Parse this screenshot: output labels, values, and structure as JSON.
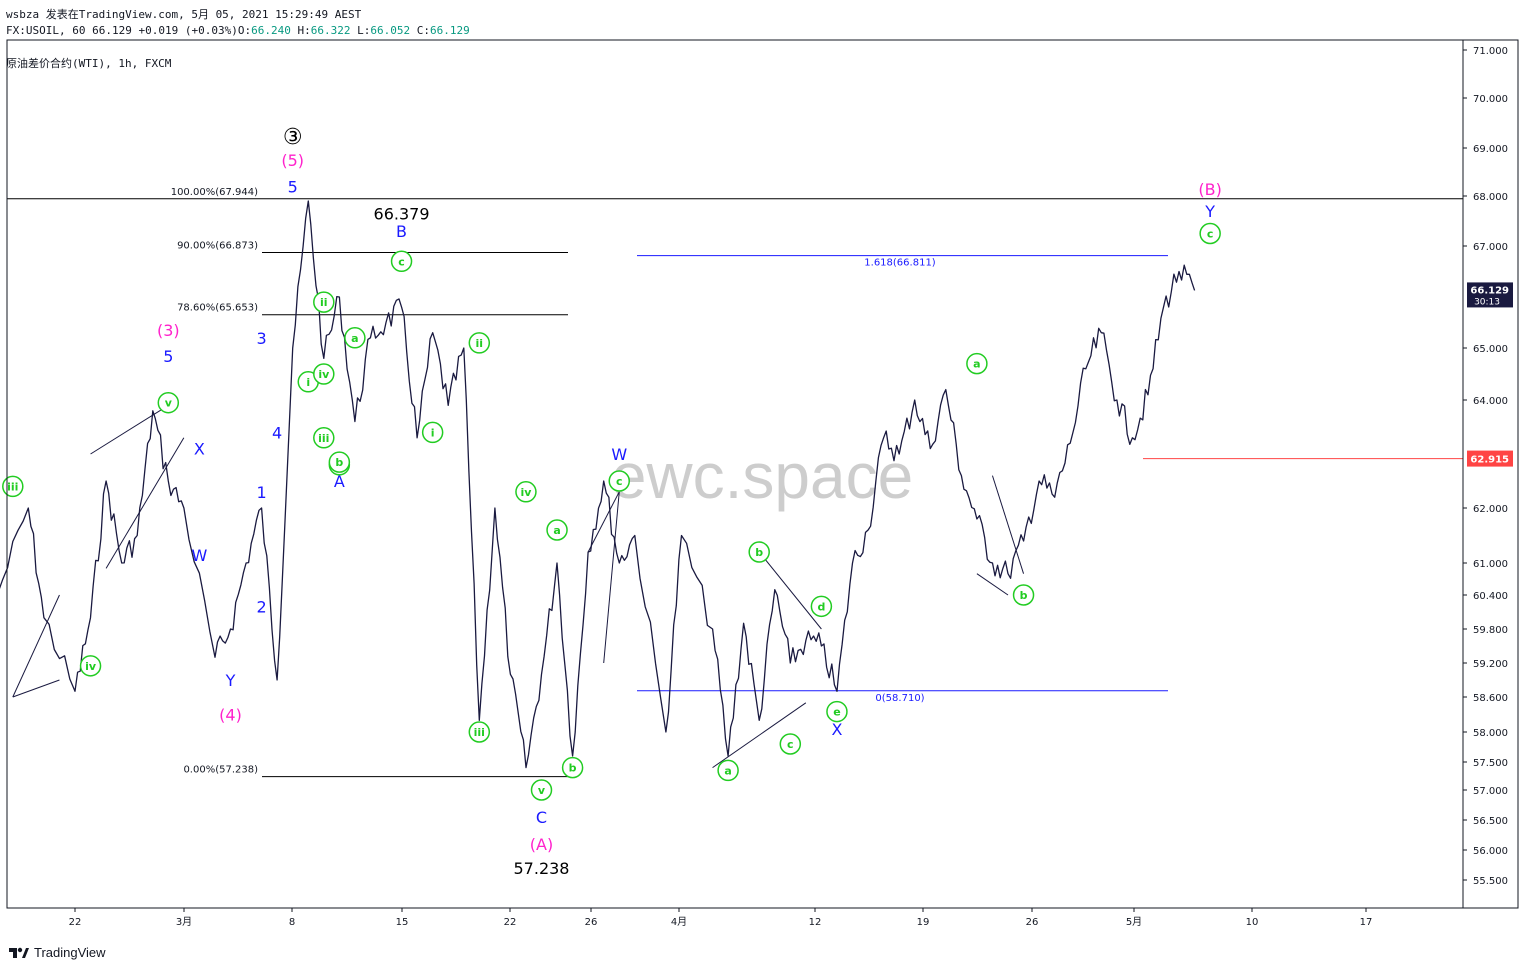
{
  "header": {
    "line1": "wsbza 发表在TradingView.com, 5月 05, 2021 15:29:49 AEST",
    "symbol": "FX:USOIL, 60",
    "last": "66.129",
    "change": "+0.019 (+0.03%)",
    "o_label": "O:",
    "o": "66.240",
    "h_label": "H:",
    "h": "66.322",
    "l_label": "L:",
    "l": "66.052",
    "c_label": "C:",
    "c": "66.129"
  },
  "title": "原油差价合约(WTI), 1h, FXCM",
  "watermark": "ewc.space",
  "brand": "TradingView",
  "colors": {
    "line": "#1a1a40",
    "green": "#22cc22",
    "blue": "#1a1aff",
    "magenta": "#ff22cc",
    "red": "#ff4444",
    "black": "#000000"
  },
  "chart_data": {
    "type": "line",
    "symbol": "FX:USOIL",
    "timeframe": "1h",
    "y_ticks": [
      "71.000",
      "70.000",
      "69.000",
      "68.000",
      "67.000",
      "65.000",
      "64.000",
      "62.000",
      "61.000",
      "60.400",
      "59.800",
      "59.200",
      "58.600",
      "58.000",
      "57.500",
      "57.000",
      "56.500",
      "56.000",
      "55.500"
    ],
    "x_ticks": [
      "22",
      "3月",
      "8",
      "15",
      "22",
      "26",
      "4月",
      "12",
      "19",
      "26",
      "5月",
      "10",
      "17"
    ],
    "x": [
      "2021-02-17",
      "2021-02-19",
      "2021-02-20",
      "2021-02-22",
      "2021-02-23",
      "2021-02-24",
      "2021-02-25",
      "2021-02-26",
      "2021-02-27",
      "2021-02-28",
      "2021-03-01",
      "2021-03-03",
      "2021-03-04",
      "2021-03-05",
      "2021-03-06",
      "2021-03-07",
      "2021-03-08",
      "2021-03-09",
      "2021-03-10",
      "2021-03-11",
      "2021-03-12",
      "2021-03-13",
      "2021-03-14",
      "2021-03-15",
      "2021-03-16",
      "2021-03-17",
      "2021-03-18",
      "2021-03-19",
      "2021-03-20",
      "2021-03-21",
      "2021-03-22",
      "2021-03-23",
      "2021-03-24",
      "2021-03-25",
      "2021-03-26",
      "2021-03-27",
      "2021-03-28",
      "2021-03-29",
      "2021-03-30",
      "2021-04-01",
      "2021-04-02",
      "2021-04-04",
      "2021-04-05",
      "2021-04-06",
      "2021-04-07",
      "2021-04-08",
      "2021-04-09",
      "2021-04-10",
      "2021-04-11",
      "2021-04-12",
      "2021-04-13",
      "2021-04-14",
      "2021-04-15",
      "2021-04-16",
      "2021-04-17",
      "2021-04-18",
      "2021-04-19",
      "2021-04-20",
      "2021-04-21",
      "2021-04-22",
      "2021-04-23",
      "2021-04-24",
      "2021-04-25",
      "2021-04-26",
      "2021-04-27",
      "2021-04-28",
      "2021-04-29",
      "2021-04-30",
      "2021-05-01",
      "2021-05-02",
      "2021-05-03",
      "2021-05-04",
      "2021-05-05"
    ],
    "y": [
      60.4,
      62.0,
      60.0,
      58.7,
      60.0,
      62.5,
      61.0,
      61.5,
      63.8,
      62.5,
      62.0,
      59.3,
      59.8,
      61.0,
      62.0,
      58.9,
      65.0,
      67.9,
      64.8,
      66.0,
      63.6,
      65.2,
      65.5,
      65.8,
      63.3,
      65.3,
      63.9,
      65.0,
      58.2,
      62.0,
      59.0,
      57.4,
      59.0,
      61.0,
      57.6,
      61.2,
      62.5,
      61.0,
      61.5,
      58.0,
      61.5,
      59.8,
      57.6,
      59.9,
      58.2,
      60.5,
      59.2,
      59.6,
      59.5,
      58.7,
      61.0,
      61.6,
      63.3,
      63.0,
      64.0,
      63.1,
      64.2,
      62.6,
      61.8,
      61.0,
      60.8,
      61.4,
      62.5,
      62.2,
      63.2,
      64.6,
      65.3,
      64.0,
      63.3,
      64.1,
      65.8,
      66.5,
      66.129
    ],
    "current_price": "66.129",
    "countdown": "30:13",
    "marker_price": "62.915",
    "fib_retracement": [
      {
        "label": "100.00%(67.944)",
        "value": 67.944
      },
      {
        "label": "90.00%(66.873)",
        "value": 66.873
      },
      {
        "label": "78.60%(65.653)",
        "value": 65.653
      },
      {
        "label": "0.00%(57.238)",
        "value": 57.238
      }
    ],
    "fib_extension": [
      {
        "label": "1.618(66.811)",
        "value": 66.811
      },
      {
        "label": "0(58.710)",
        "value": 58.71
      }
    ],
    "annotations": [
      {
        "text": "③",
        "x": "2021-03-08",
        "y": 69.2,
        "color": "black",
        "style": "plain"
      },
      {
        "text": "(5)",
        "x": "2021-03-08",
        "y": 68.75,
        "color": "magenta",
        "style": "plain"
      },
      {
        "text": "5",
        "x": "2021-03-08",
        "y": 68.2,
        "color": "blue",
        "style": "plain"
      },
      {
        "text": "66.379",
        "x": "2021-03-15",
        "y": 67.65,
        "color": "black",
        "style": "plain"
      },
      {
        "text": "B",
        "x": "2021-03-15",
        "y": 67.3,
        "color": "blue",
        "style": "plain"
      },
      {
        "text": "(3)",
        "x": "2021-02-28",
        "y": 65.35,
        "color": "magenta",
        "style": "plain"
      },
      {
        "text": "5",
        "x": "2021-02-28",
        "y": 64.85,
        "color": "blue",
        "style": "plain"
      },
      {
        "text": "v",
        "x": "2021-02-28",
        "y": 63.95,
        "color": "green",
        "style": "circle"
      },
      {
        "text": "X",
        "x": "2021-03-02",
        "y": 63.1,
        "color": "blue",
        "style": "plain"
      },
      {
        "text": "iii",
        "x": "2021-02-18",
        "y": 62.4,
        "color": "green",
        "style": "circle"
      },
      {
        "text": "W",
        "x": "2021-03-02",
        "y": 61.15,
        "color": "blue",
        "style": "plain"
      },
      {
        "text": "iv",
        "x": "2021-02-23",
        "y": 59.15,
        "color": "green",
        "style": "circle"
      },
      {
        "text": "Y",
        "x": "2021-03-04",
        "y": 58.9,
        "color": "blue",
        "style": "plain"
      },
      {
        "text": "(4)",
        "x": "2021-03-04",
        "y": 58.3,
        "color": "magenta",
        "style": "plain"
      },
      {
        "text": "1",
        "x": "2021-03-06",
        "y": 62.3,
        "color": "blue",
        "style": "plain"
      },
      {
        "text": "2",
        "x": "2021-03-06",
        "y": 60.2,
        "color": "blue",
        "style": "plain"
      },
      {
        "text": "3",
        "x": "2021-03-06",
        "y": 65.2,
        "color": "blue",
        "style": "plain"
      },
      {
        "text": "4",
        "x": "2021-03-07",
        "y": 63.4,
        "color": "blue",
        "style": "plain"
      },
      {
        "text": "ii",
        "x": "2021-03-10",
        "y": 65.9,
        "color": "green",
        "style": "circle"
      },
      {
        "text": "i",
        "x": "2021-03-09",
        "y": 64.35,
        "color": "green",
        "style": "circle"
      },
      {
        "text": "iv",
        "x": "2021-03-10",
        "y": 64.5,
        "color": "green",
        "style": "circle"
      },
      {
        "text": "a",
        "x": "2021-03-12",
        "y": 65.2,
        "color": "green",
        "style": "circle"
      },
      {
        "text": "iii",
        "x": "2021-03-10",
        "y": 63.3,
        "color": "green",
        "style": "circle"
      },
      {
        "text": "v",
        "x": "2021-03-11",
        "y": 62.8,
        "color": "green",
        "style": "circle"
      },
      {
        "text": "b",
        "x": "2021-03-11",
        "y": 62.85,
        "color": "green",
        "style": "circle"
      },
      {
        "text": "A",
        "x": "2021-03-11",
        "y": 62.5,
        "color": "blue",
        "style": "plain"
      },
      {
        "text": "c",
        "x": "2021-03-15",
        "y": 66.7,
        "color": "green",
        "style": "circle"
      },
      {
        "text": "ii",
        "x": "2021-03-20",
        "y": 65.1,
        "color": "green",
        "style": "circle"
      },
      {
        "text": "i",
        "x": "2021-03-17",
        "y": 63.4,
        "color": "green",
        "style": "circle"
      },
      {
        "text": "iv",
        "x": "2021-03-23",
        "y": 62.3,
        "color": "green",
        "style": "circle"
      },
      {
        "text": "a",
        "x": "2021-03-25",
        "y": 61.6,
        "color": "green",
        "style": "circle"
      },
      {
        "text": "iii",
        "x": "2021-03-20",
        "y": 58.0,
        "color": "green",
        "style": "circle"
      },
      {
        "text": "b",
        "x": "2021-03-26",
        "y": 57.4,
        "color": "green",
        "style": "circle"
      },
      {
        "text": "v",
        "x": "2021-03-24",
        "y": 57.0,
        "color": "green",
        "style": "circle"
      },
      {
        "text": "C",
        "x": "2021-03-24",
        "y": 56.55,
        "color": "blue",
        "style": "plain"
      },
      {
        "text": "(A)",
        "x": "2021-03-24",
        "y": 56.1,
        "color": "magenta",
        "style": "plain"
      },
      {
        "text": "57.238",
        "x": "2021-03-24",
        "y": 55.7,
        "color": "black",
        "style": "plain"
      },
      {
        "text": "W",
        "x": "2021-03-29",
        "y": 63.0,
        "color": "blue",
        "style": "plain"
      },
      {
        "text": "c",
        "x": "2021-03-29",
        "y": 62.5,
        "color": "green",
        "style": "circle"
      },
      {
        "text": "b",
        "x": "2021-04-07",
        "y": 61.2,
        "color": "green",
        "style": "circle"
      },
      {
        "text": "d",
        "x": "2021-04-11",
        "y": 60.2,
        "color": "green",
        "style": "circle"
      },
      {
        "text": "e",
        "x": "2021-04-12",
        "y": 58.35,
        "color": "green",
        "style": "circle"
      },
      {
        "text": "X",
        "x": "2021-04-12",
        "y": 58.05,
        "color": "blue",
        "style": "plain"
      },
      {
        "text": "c",
        "x": "2021-04-09",
        "y": 57.8,
        "color": "green",
        "style": "circle"
      },
      {
        "text": "a",
        "x": "2021-04-05",
        "y": 57.35,
        "color": "green",
        "style": "circle"
      },
      {
        "text": "a",
        "x": "2021-04-21",
        "y": 64.7,
        "color": "green",
        "style": "circle"
      },
      {
        "text": "b",
        "x": "2021-04-24",
        "y": 60.4,
        "color": "green",
        "style": "circle"
      },
      {
        "text": "(B)",
        "x": "2021-05-06",
        "y": 68.15,
        "color": "magenta",
        "style": "plain"
      },
      {
        "text": "Y",
        "x": "2021-05-06",
        "y": 67.7,
        "color": "blue",
        "style": "plain"
      },
      {
        "text": "c",
        "x": "2021-05-06",
        "y": 67.25,
        "color": "green",
        "style": "circle"
      }
    ]
  }
}
